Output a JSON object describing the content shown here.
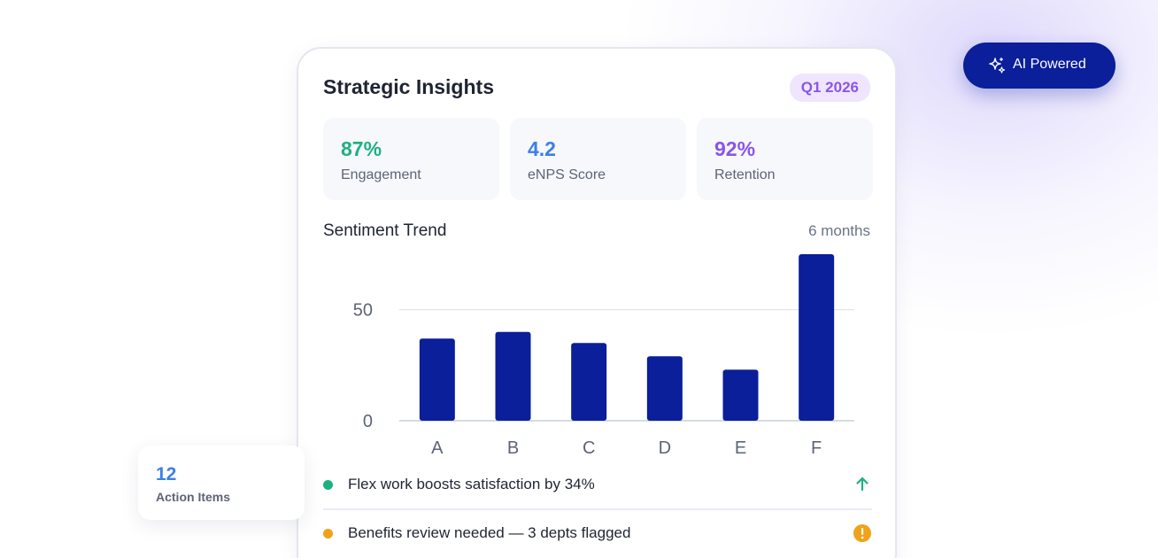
{
  "card": {
    "title": "Strategic Insights",
    "period_badge": "Q1 2026",
    "stats": [
      {
        "value": "87%",
        "label": "Engagement",
        "color": "#1fb07e"
      },
      {
        "value": "4.2",
        "label": "eNPS Score",
        "color": "#3d7fe6"
      },
      {
        "value": "92%",
        "label": "Retention",
        "color": "#8b55e8"
      }
    ],
    "trend_title": "Sentiment Trend",
    "trend_range": "6 months",
    "insights": [
      {
        "text": "Flex work boosts satisfaction by 34%",
        "dot_color": "#1fb07e",
        "indicator": "arrow-up-icon"
      },
      {
        "text": "Benefits review needed — 3 depts flagged",
        "dot_color": "#f0a21a",
        "indicator": "warning-icon"
      }
    ]
  },
  "chart_data": {
    "type": "bar",
    "categories": [
      "A",
      "B",
      "C",
      "D",
      "E",
      "F"
    ],
    "values": [
      37,
      40,
      35,
      29,
      23,
      75
    ],
    "yticks": [
      0,
      50
    ],
    "ylim": [
      0,
      75
    ],
    "bar_color": "#0a1f99",
    "grid": true
  },
  "action_card": {
    "count": "12",
    "label": "Action Items"
  },
  "ai_badge": {
    "label": "AI Powered",
    "icon": "sparkle-icon"
  }
}
